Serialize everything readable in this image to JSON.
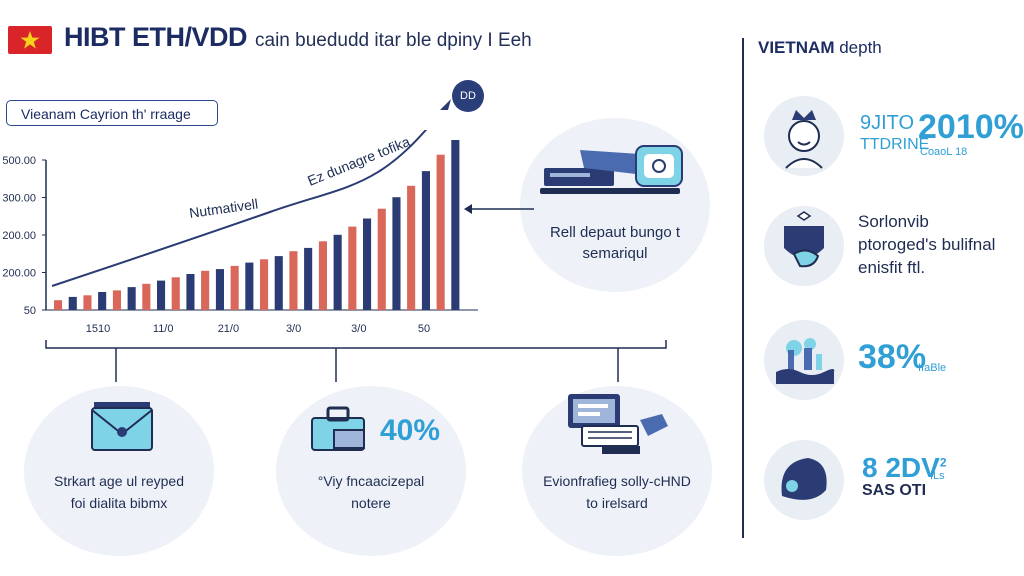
{
  "header": {
    "title": "HIBT ETH/VDD",
    "subtitle": "cain buedudd itar ble dpiny I Eeh"
  },
  "chart_panel": {
    "pill_label": "Vieanam Cayrion th' rraage",
    "badge": "DD",
    "annotations": [
      "Nutmativell",
      "Ez dunagre tofika"
    ],
    "chart_data": {
      "type": "bar",
      "y_tick_labels": [
        "500.00",
        "300.00",
        "200.00",
        "200.00",
        "50"
      ],
      "x_tick_labels": [
        "1510",
        "11/0",
        "21/0",
        "3/0",
        "3/0",
        "50"
      ],
      "values": [
        6,
        8,
        9,
        11,
        12,
        14,
        16,
        18,
        20,
        22,
        24,
        25,
        27,
        29,
        31,
        33,
        36,
        38,
        42,
        46,
        51,
        56,
        62,
        69,
        76,
        85,
        95,
        104
      ]
    }
  },
  "middle_card": {
    "line1": "Rell depaut bungo t",
    "line2": "semariqul"
  },
  "bottom_cards": [
    {
      "line1": "Strkart age ul reyped",
      "line2": "foi dialita bibmx"
    },
    {
      "percent": "40%",
      "line1": "°Viy fncaacizepal",
      "line2": "notere"
    },
    {
      "line1": "Evionfrafieg solly-cHND",
      "line2": "to irelsard"
    }
  ],
  "right_panel": {
    "title_bold": "VIETNAM",
    "title_rest": " depth",
    "items": [
      {
        "top": "9JITO",
        "side": "2010%",
        "bottom": "TTDRINE",
        "small": "CoaoL 18",
        "icon": "crowned-person-icon"
      },
      {
        "line1": "Sorlonvib",
        "line2": "ptoroged's bulifnal",
        "line3": "enisfit ftl.",
        "icon": "shield-hand-icon"
      },
      {
        "percent": "38%",
        "small": "IIaBle",
        "icon": "water-city-icon"
      },
      {
        "top": "8 2DV",
        "sup": "2",
        "bottom": "SAS OTI",
        "small": "ILs",
        "icon": "dome-icon"
      }
    ]
  },
  "colors": {
    "navy": "#1f2d52",
    "accent_blue": "#2f9fd6",
    "bar_red": "#d9675a",
    "bar_navy": "#2b3b73",
    "flag_red": "#d9252a"
  }
}
